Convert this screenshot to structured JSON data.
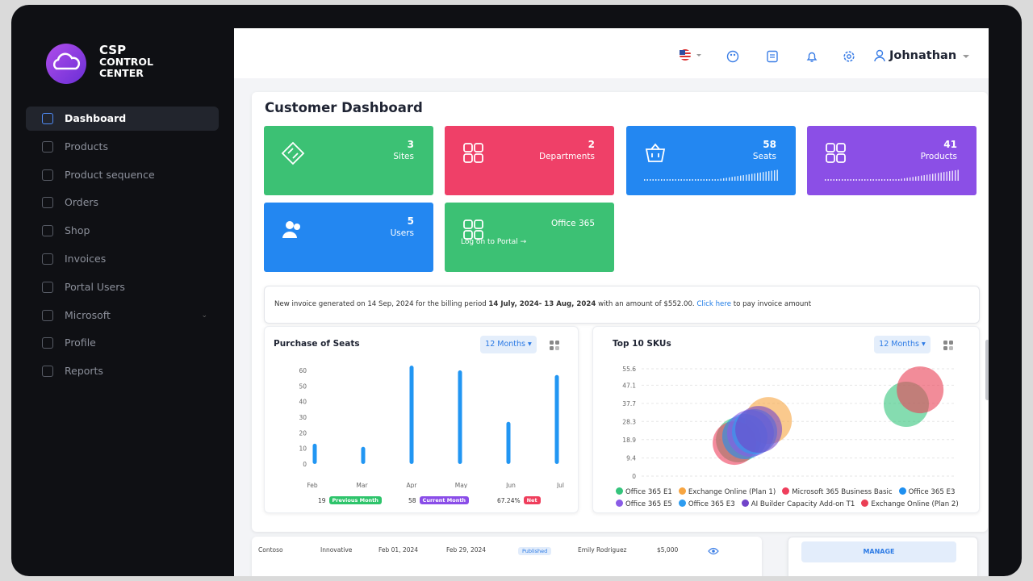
{
  "brand": {
    "lines": [
      "CSP",
      "CONTROL",
      "CENTER"
    ]
  },
  "sidebar": {
    "menu": [
      "Dashboard",
      "Products",
      "Product sequence",
      "Orders",
      "Shop",
      "Invoices",
      "Portal Users",
      "Microsoft",
      "Profile",
      "Reports"
    ]
  },
  "topbar": {
    "user": "Johnathan"
  },
  "dashboard": {
    "title": "Customer Dashboard",
    "tiles": [
      {
        "value": 3,
        "label": "Sites",
        "color": "#3cc174"
      },
      {
        "value": 2,
        "label": "Departments",
        "color": "#ef4068"
      },
      {
        "value": 58,
        "label": "Seats",
        "color": "#2387f1"
      },
      {
        "value": 41,
        "label": "Products",
        "color": "#8b4fe6"
      },
      {
        "value": 5,
        "label": "Users",
        "color": "#2387f1"
      }
    ],
    "portal_tile": {
      "title": "Office 365",
      "link": "Log on to Portal →",
      "color": "#3cc174"
    }
  },
  "notice": {
    "text": "New invoice generated on 14 Sep, 2024 for the billing period",
    "period": "14 July, 2024- 13 Aug, 2024",
    "amount_text": "with an amount of $552.00.",
    "link": "Click here",
    "tail": "to pay invoice amount"
  },
  "chart_data": [
    {
      "type": "bar",
      "title": "Purchase of Seats",
      "period": "12 Months",
      "categories": [
        "Feb",
        "Mar",
        "Apr",
        "May",
        "Jun",
        "Jul"
      ],
      "values": [
        13,
        11,
        63,
        60,
        27,
        57
      ],
      "color": "#2196f3",
      "ylim": [
        0,
        65
      ],
      "yticks": [
        0,
        10,
        20,
        30,
        40,
        50,
        60
      ],
      "grid": false,
      "summary": [
        {
          "value": "19",
          "label": "Previous Month",
          "color": "#2ec46b"
        },
        {
          "value": "58",
          "label": "Current Month",
          "color": "#8a4de8"
        },
        {
          "value": "67.24%",
          "label": "Net",
          "color": "#ef3e5c"
        }
      ]
    },
    {
      "type": "bubble",
      "title": "Top 10 SKUs",
      "period": "12 Months",
      "xlim": [
        0,
        100
      ],
      "ylim": [
        0,
        55.6
      ],
      "yticks": [
        0,
        9.4,
        18.9,
        28.3,
        37.7,
        47.1,
        55.6
      ],
      "grid": true,
      "series": [
        {
          "name": "Office 365 E1",
          "color": "#34c47c",
          "x": [
            30.8,
            84.1
          ],
          "values": [
            18.8,
            37.2
          ],
          "sizes": [
            28,
            28
          ]
        },
        {
          "name": "Exchange Online (Plan 1)",
          "color": "#f7a541",
          "x": [
            40.3
          ],
          "values": [
            28.8
          ],
          "sizes": [
            29
          ]
        },
        {
          "name": "Microsoft 365 Business Basic",
          "color": "#ef3e5c",
          "x": [
            29.5
          ],
          "values": [
            17.1
          ],
          "sizes": [
            27
          ]
        },
        {
          "name": "Office 365 E3",
          "color": "#1e8ff0",
          "x": [
            32.8
          ],
          "values": [
            20.5
          ],
          "sizes": [
            28
          ]
        },
        {
          "name": "Office 365 E5",
          "color": "#8a5ce6",
          "x": [
            34.6
          ],
          "values": [
            22.2
          ],
          "sizes": [
            29
          ]
        },
        {
          "name": "Office 365 E3",
          "color": "#2d9cf0",
          "x": [
            35.9
          ],
          "values": [
            23.0
          ],
          "sizes": [
            28
          ]
        },
        {
          "name": "AI Builder Capacity Add-on T1",
          "color": "#7144c9",
          "x": [
            37.2
          ],
          "values": [
            24.2
          ],
          "sizes": [
            29
          ]
        },
        {
          "name": "Exchange Online (Plan 2)",
          "color": "#ea3f55",
          "x": [
            88.5
          ],
          "values": [
            44.7
          ],
          "sizes": [
            29
          ]
        }
      ]
    }
  ],
  "table": {
    "rows": [
      [
        "Contoso",
        "Innovative",
        "Feb 01, 2024",
        "Feb 29, 2024",
        "Published",
        "Emily Rodriguez",
        "$5,000"
      ]
    ]
  },
  "manage": "MANAGE"
}
